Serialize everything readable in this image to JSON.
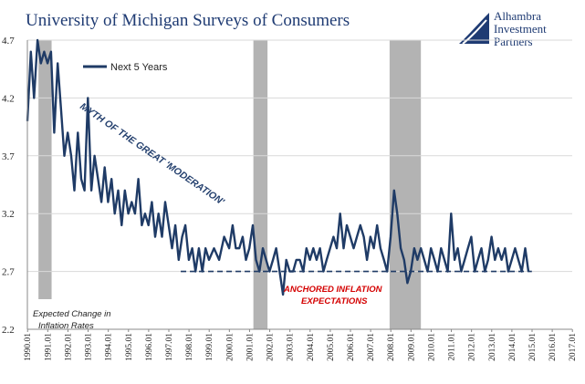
{
  "chart_data": {
    "type": "line",
    "title": "University of Michigan Surveys of Consumers",
    "xlabel": "",
    "ylabel": "",
    "ylim": [
      2.2,
      4.7
    ],
    "y_ticks": [
      "2.2",
      "2.7",
      "3.2",
      "3.7",
      "4.2",
      "4.7"
    ],
    "x_ticks": [
      "1990.01",
      "1991.01",
      "1992.01",
      "1993.01",
      "1994.01",
      "1995.01",
      "1996.01",
      "1997.01",
      "1998.01",
      "1999.01",
      "2000.01",
      "2001.01",
      "2002.01",
      "2003.01",
      "2004.01",
      "2005.01",
      "2006.01",
      "2007.01",
      "2008.01",
      "2009.01",
      "2010.01",
      "2011.01",
      "2012.01",
      "2013.01",
      "2014.01",
      "2015.01",
      "2016.01",
      "2017.01"
    ],
    "x_range": [
      1990.0,
      2017.0
    ],
    "grid": "horizontal",
    "legend_position": "top-left",
    "series": [
      {
        "name": "Next 5 Years",
        "color": "#1f3b66",
        "x": [
          1990.0,
          1990.17,
          1990.33,
          1990.5,
          1990.67,
          1990.83,
          1991.0,
          1991.17,
          1991.33,
          1991.5,
          1991.67,
          1991.83,
          1992.0,
          1992.17,
          1992.33,
          1992.5,
          1992.67,
          1992.83,
          1993.0,
          1993.17,
          1993.33,
          1993.5,
          1993.67,
          1993.83,
          1994.0,
          1994.17,
          1994.33,
          1994.5,
          1994.67,
          1994.83,
          1995.0,
          1995.17,
          1995.33,
          1995.5,
          1995.67,
          1995.83,
          1996.0,
          1996.17,
          1996.33,
          1996.5,
          1996.67,
          1996.83,
          1997.0,
          1997.17,
          1997.33,
          1997.5,
          1997.67,
          1997.83,
          1998.0,
          1998.17,
          1998.33,
          1998.5,
          1998.67,
          1998.83,
          1999.0,
          1999.25,
          1999.5,
          1999.75,
          2000.0,
          2000.17,
          2000.33,
          2000.5,
          2000.67,
          2000.83,
          2001.0,
          2001.17,
          2001.33,
          2001.5,
          2001.67,
          2001.83,
          2002.0,
          2002.17,
          2002.33,
          2002.5,
          2002.67,
          2002.83,
          2003.0,
          2003.17,
          2003.33,
          2003.5,
          2003.67,
          2003.83,
          2004.0,
          2004.17,
          2004.33,
          2004.5,
          2004.67,
          2004.83,
          2005.0,
          2005.17,
          2005.33,
          2005.5,
          2005.67,
          2005.83,
          2006.0,
          2006.17,
          2006.33,
          2006.5,
          2006.67,
          2006.83,
          2007.0,
          2007.17,
          2007.33,
          2007.5,
          2007.67,
          2007.83,
          2008.0,
          2008.17,
          2008.33,
          2008.5,
          2008.67,
          2008.83,
          2009.0,
          2009.17,
          2009.33,
          2009.5,
          2009.67,
          2009.83,
          2010.0,
          2010.17,
          2010.33,
          2010.5,
          2010.67,
          2010.83,
          2011.0,
          2011.17,
          2011.33,
          2011.5,
          2011.67,
          2011.83,
          2012.0,
          2012.17,
          2012.33,
          2012.5,
          2012.67,
          2012.83,
          2013.0,
          2013.17,
          2013.33,
          2013.5,
          2013.67,
          2013.83,
          2014.0,
          2014.17,
          2014.33,
          2014.5,
          2014.67,
          2014.83
        ],
        "values": [
          4.0,
          4.6,
          4.2,
          4.7,
          4.5,
          4.6,
          4.5,
          4.6,
          3.9,
          4.5,
          4.1,
          3.7,
          3.9,
          3.7,
          3.4,
          3.9,
          3.5,
          3.4,
          4.2,
          3.4,
          3.7,
          3.5,
          3.3,
          3.6,
          3.3,
          3.5,
          3.2,
          3.4,
          3.1,
          3.4,
          3.2,
          3.3,
          3.2,
          3.5,
          3.1,
          3.2,
          3.1,
          3.3,
          3.0,
          3.2,
          3.0,
          3.3,
          3.1,
          2.9,
          3.1,
          2.8,
          3.0,
          3.1,
          2.8,
          2.9,
          2.7,
          2.9,
          2.7,
          2.9,
          2.8,
          2.9,
          2.8,
          3.0,
          2.9,
          3.1,
          2.9,
          2.9,
          3.0,
          2.8,
          2.9,
          3.1,
          2.8,
          2.7,
          2.9,
          2.8,
          2.7,
          2.8,
          2.9,
          2.7,
          2.5,
          2.8,
          2.7,
          2.7,
          2.8,
          2.8,
          2.7,
          2.9,
          2.8,
          2.9,
          2.8,
          2.9,
          2.7,
          2.8,
          2.9,
          3.0,
          2.9,
          3.2,
          2.9,
          3.1,
          3.0,
          2.9,
          3.0,
          3.1,
          3.0,
          2.8,
          3.0,
          2.9,
          3.1,
          2.9,
          2.8,
          2.7,
          3.0,
          3.4,
          3.2,
          2.9,
          2.8,
          2.6,
          2.7,
          2.9,
          2.8,
          2.9,
          2.8,
          2.7,
          2.9,
          2.8,
          2.7,
          2.9,
          2.8,
          2.7,
          3.2,
          2.8,
          2.9,
          2.7,
          2.8,
          2.9,
          3.0,
          2.7,
          2.8,
          2.9,
          2.7,
          2.8,
          3.0,
          2.8,
          2.9,
          2.8,
          2.9,
          2.7,
          2.8,
          2.9,
          2.8,
          2.7,
          2.9,
          2.7
        ]
      }
    ],
    "recession_bands": [
      [
        1990.55,
        1991.2
      ],
      [
        2001.2,
        2001.9
      ],
      [
        2007.95,
        2009.5
      ]
    ],
    "anchor_line": {
      "y": 2.7,
      "x_start": 1997.6,
      "x_end": 2015.0
    },
    "annotations": {
      "diagonal": "MYTH OF THE GREAT 'MODERATION'",
      "anchored_line1": "ANCHORED INFLATION",
      "anchored_line2": "EXPECTATIONS",
      "note_line1": "Expected Change in",
      "note_line2": "Inflation Rates"
    }
  },
  "logo": {
    "line1": "Alhambra",
    "line2": "Investment",
    "line3": "Partners",
    "color": "#1f3b73"
  }
}
